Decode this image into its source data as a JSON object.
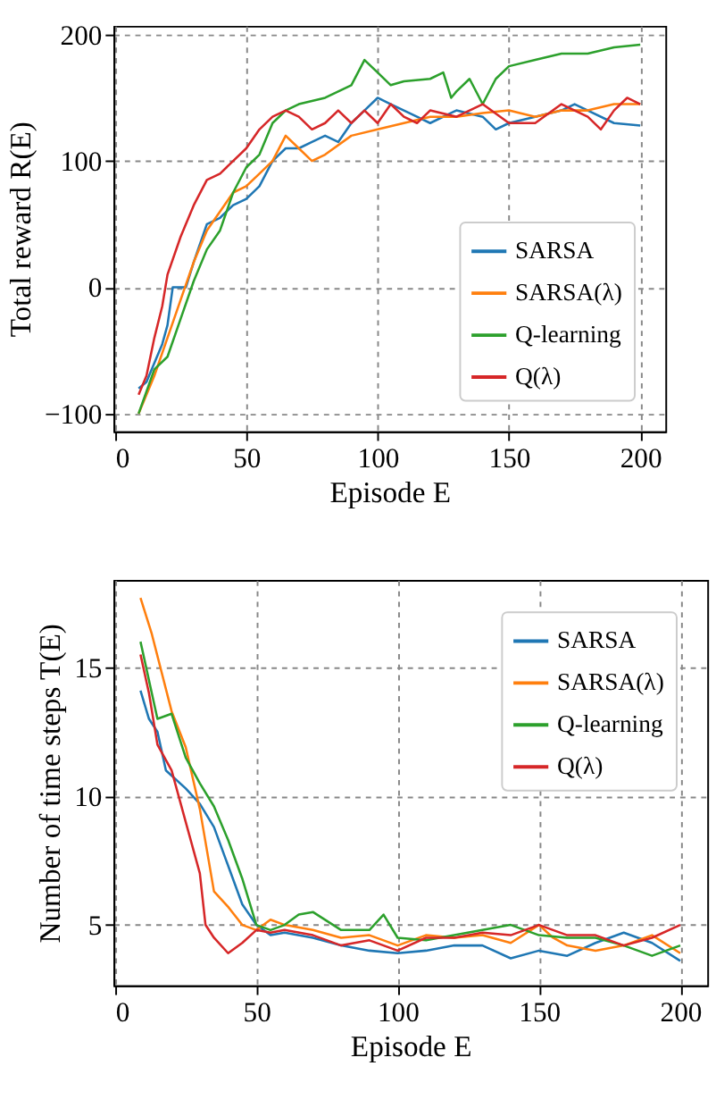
{
  "chart_data": [
    {
      "type": "line",
      "xlabel": "Episode E",
      "ylabel": "Total reward R(E)",
      "xlim": [
        -0.55,
        209.55
      ],
      "xticks": [
        0,
        50,
        100,
        150,
        200
      ],
      "ylim": [
        -114,
        207
      ],
      "yticks": [
        -100,
        0,
        100,
        200
      ],
      "grid": true,
      "legend": "bottom right",
      "line_style": "solid",
      "series": [
        {
          "name": "SARSA",
          "color": "#1f77b4",
          "x": [
            9,
            12,
            15,
            18,
            20,
            22,
            25,
            27,
            30,
            35,
            40,
            45,
            50,
            55,
            60,
            65,
            70,
            75,
            80,
            85,
            90,
            95,
            100,
            105,
            110,
            115,
            120,
            130,
            140,
            145,
            150,
            160,
            170,
            175,
            180,
            190,
            200
          ],
          "values": [
            -80,
            -75,
            -60,
            -45,
            -30,
            0,
            0,
            0,
            20,
            50,
            55,
            65,
            70,
            80,
            100,
            110,
            110,
            115,
            120,
            115,
            130,
            140,
            150,
            145,
            140,
            135,
            130,
            140,
            135,
            125,
            130,
            135,
            140,
            145,
            140,
            130,
            128
          ]
        },
        {
          "name": "SARSA(λ)",
          "color": "#ff7f0e",
          "x": [
            9,
            15,
            20,
            25,
            30,
            35,
            40,
            45,
            50,
            55,
            60,
            65,
            70,
            75,
            80,
            90,
            100,
            110,
            120,
            130,
            140,
            150,
            160,
            170,
            180,
            190,
            200
          ],
          "values": [
            -100,
            -70,
            -40,
            -10,
            20,
            45,
            60,
            75,
            80,
            90,
            100,
            120,
            110,
            100,
            105,
            120,
            125,
            130,
            135,
            135,
            138,
            140,
            135,
            140,
            140,
            145,
            145
          ]
        },
        {
          "name": "Q-learning",
          "color": "#2ca02c",
          "x": [
            9,
            15,
            20,
            25,
            30,
            35,
            40,
            45,
            50,
            55,
            60,
            65,
            70,
            80,
            90,
            95,
            100,
            105,
            110,
            120,
            125,
            128,
            130,
            135,
            140,
            145,
            150,
            160,
            170,
            180,
            190,
            200
          ],
          "values": [
            -100,
            -65,
            -55,
            -25,
            5,
            30,
            45,
            75,
            95,
            105,
            130,
            140,
            145,
            150,
            160,
            180,
            170,
            160,
            163,
            165,
            170,
            150,
            155,
            165,
            145,
            165,
            175,
            180,
            185,
            185,
            190,
            192
          ]
        },
        {
          "name": "Q(λ)",
          "color": "#d62728",
          "x": [
            9,
            12,
            15,
            18,
            20,
            25,
            30,
            35,
            40,
            45,
            50,
            55,
            60,
            65,
            70,
            75,
            80,
            85,
            90,
            95,
            100,
            105,
            110,
            115,
            120,
            130,
            140,
            150,
            160,
            170,
            180,
            185,
            190,
            195,
            200
          ],
          "values": [
            -85,
            -70,
            -40,
            -15,
            10,
            40,
            65,
            85,
            90,
            100,
            110,
            125,
            135,
            140,
            135,
            125,
            130,
            140,
            130,
            140,
            130,
            145,
            135,
            130,
            140,
            135,
            145,
            130,
            130,
            145,
            135,
            125,
            140,
            150,
            145
          ]
        }
      ]
    },
    {
      "type": "line",
      "xlabel": "Episode E",
      "ylabel": "Number of time steps T(E)",
      "xlim": [
        -0.55,
        209.55
      ],
      "xticks": [
        0,
        50,
        100,
        150,
        200
      ],
      "ylim": [
        2.65,
        18.4
      ],
      "yticks": [
        5,
        10,
        15
      ],
      "grid": true,
      "legend": "top right",
      "line_style": "solid",
      "series": [
        {
          "name": "SARSA",
          "color": "#1f77b4",
          "x": [
            9,
            12,
            15,
            18,
            20,
            25,
            30,
            35,
            40,
            45,
            50,
            55,
            60,
            70,
            80,
            90,
            100,
            110,
            120,
            130,
            140,
            150,
            160,
            170,
            180,
            190,
            200
          ],
          "values": [
            14.1,
            13.0,
            12.5,
            11.0,
            10.8,
            10.3,
            9.7,
            8.8,
            7.3,
            5.8,
            5.0,
            4.6,
            4.7,
            4.5,
            4.2,
            4.0,
            3.9,
            4.0,
            4.2,
            4.2,
            3.7,
            4.0,
            3.8,
            4.3,
            4.7,
            4.3,
            3.6
          ]
        },
        {
          "name": "SARSA(λ)",
          "color": "#ff7f0e",
          "x": [
            9,
            13,
            20,
            25,
            30,
            35,
            40,
            45,
            50,
            55,
            60,
            70,
            80,
            90,
            100,
            110,
            120,
            130,
            140,
            150,
            155,
            160,
            170,
            180,
            190,
            200
          ],
          "values": [
            17.7,
            16.3,
            13.3,
            11.9,
            9.5,
            6.3,
            5.7,
            5.0,
            4.8,
            5.2,
            5.0,
            4.8,
            4.5,
            4.6,
            4.2,
            4.6,
            4.5,
            4.6,
            4.3,
            5.0,
            4.5,
            4.2,
            4.0,
            4.2,
            4.6,
            3.9
          ]
        },
        {
          "name": "Q-learning",
          "color": "#2ca02c",
          "x": [
            9,
            12,
            15,
            20,
            25,
            30,
            35,
            40,
            45,
            50,
            55,
            60,
            65,
            70,
            80,
            90,
            95,
            100,
            110,
            120,
            130,
            140,
            150,
            160,
            170,
            180,
            190,
            200
          ],
          "values": [
            16.0,
            14.5,
            13.0,
            13.2,
            11.5,
            10.5,
            9.6,
            8.3,
            6.8,
            5.0,
            4.8,
            5.0,
            5.4,
            5.5,
            4.8,
            4.8,
            5.4,
            4.5,
            4.4,
            4.6,
            4.8,
            5.0,
            4.6,
            4.5,
            4.5,
            4.2,
            3.8,
            4.2
          ]
        },
        {
          "name": "Q(λ)",
          "color": "#d62728",
          "x": [
            9,
            12,
            15,
            20,
            25,
            30,
            32,
            35,
            40,
            45,
            50,
            55,
            60,
            70,
            80,
            90,
            100,
            110,
            120,
            130,
            140,
            150,
            160,
            170,
            180,
            190,
            200
          ],
          "values": [
            15.5,
            14.0,
            12.0,
            11.0,
            9.0,
            7.0,
            5.0,
            4.5,
            3.9,
            4.3,
            4.8,
            4.7,
            4.8,
            4.6,
            4.2,
            4.4,
            4.0,
            4.5,
            4.5,
            4.7,
            4.6,
            5.0,
            4.6,
            4.6,
            4.2,
            4.5,
            5.0
          ]
        }
      ]
    }
  ]
}
